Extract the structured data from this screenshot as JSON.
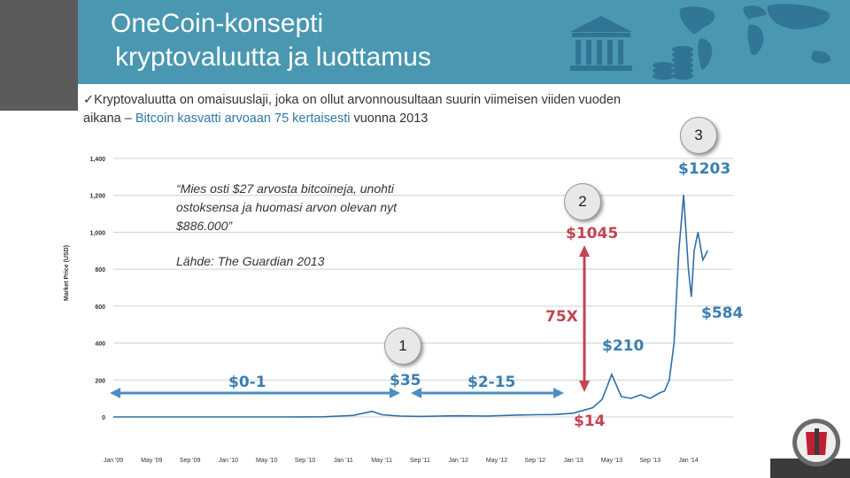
{
  "slide": {
    "title_line1": "OneCoin-konsepti",
    "title_line2": "kryptovaluutta ja luottamus",
    "bullet_prefix": "✓Kryptovaluutta on omaisuuslaji, joka on ollut arvonnousultaan suurin viimeisen viiden vuoden aikana – ",
    "bullet_highlight": "Bitcoin kasvatti arvoaan 75 kertaisesti",
    "bullet_suffix": " vuonna 2013"
  },
  "quote": {
    "text": "“Mies osti $27 arvosta bitcoineja, unohti ostoksensa ja huomasi arvon olevan nyt $886.000”",
    "source": "Lähde: The Guardian 2013"
  },
  "badges": {
    "b1": "1",
    "b2": "2",
    "b3": "3"
  },
  "annotations": {
    "p_0_1": "$0-1",
    "p_35": "$35",
    "p_2_15": "$2-15",
    "p_1045": "$1045",
    "p_75x": "75X",
    "p_14": "$14",
    "p_210": "$210",
    "p_1203": "$1203",
    "p_584": "$584"
  },
  "colors": {
    "header": "#4a97b1",
    "blue_label": "#3a7fb1",
    "red_label": "#c44450",
    "arrow_blue": "#4a8fc4",
    "arrow_red": "#c44450"
  },
  "icons": [
    "bank-icon",
    "coins-icon",
    "world-map-icon",
    "company-logo-icon"
  ],
  "chart_data": {
    "type": "line",
    "ylabel": "Market Price (USD)",
    "ylim": [
      0,
      1400
    ],
    "yticks": [
      "0",
      "200",
      "400",
      "600",
      "800",
      "1,000",
      "1,200",
      "1,400"
    ],
    "xticks": [
      "Jan '09",
      "May '09",
      "Sep '09",
      "Jan '10",
      "May '10",
      "Sep '10",
      "Jan '11",
      "May '11",
      "Sep '11",
      "Jan '12",
      "May '12",
      "Sep '12",
      "Jan '13",
      "May '13",
      "Sep '13",
      "Jan '14"
    ],
    "series": [
      {
        "x": [
          0,
          4,
          8,
          12,
          16,
          18,
          20,
          22,
          25,
          27,
          28,
          29,
          30,
          32,
          34,
          36,
          39,
          42,
          44,
          46,
          48,
          49,
          50,
          51,
          52,
          53,
          54,
          55,
          56,
          56.5,
          57,
          57.5,
          58,
          58.5,
          59,
          59.5,
          60,
          60.3,
          60.6,
          61,
          61.5,
          62
        ],
        "y": [
          0,
          0,
          0,
          0.1,
          0.1,
          0.1,
          0.3,
          1,
          8,
          30,
          12,
          8,
          5,
          3,
          5,
          6,
          5,
          10,
          12,
          13,
          20,
          35,
          50,
          95,
          230,
          110,
          100,
          120,
          100,
          115,
          130,
          140,
          200,
          400,
          900,
          1203,
          800,
          650,
          900,
          1000,
          850,
          900
        ]
      }
    ]
  }
}
